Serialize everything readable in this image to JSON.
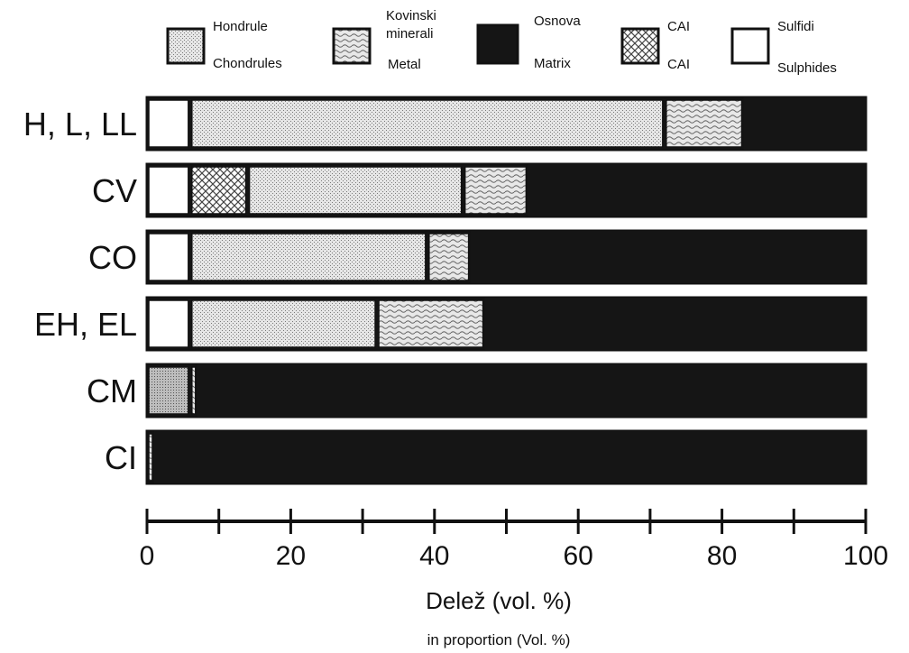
{
  "chart_data": {
    "type": "bar",
    "orientation": "horizontal",
    "stacked": true,
    "categories": [
      "H, L, LL",
      "CV",
      "CO",
      "EH, EL",
      "CM",
      "CI"
    ],
    "series": [
      {
        "key": "sulphides",
        "name_sl": "Sulfidi",
        "name_en": "Sulphides",
        "pattern": "white",
        "values": [
          6,
          6,
          6,
          6,
          0,
          0
        ]
      },
      {
        "key": "cai",
        "name_sl": "CAI",
        "name_en": "CAI",
        "pattern": "crosshatch",
        "values": [
          0,
          8,
          0,
          0,
          0,
          0
        ]
      },
      {
        "key": "chondrules",
        "name_sl": "Hondrule",
        "name_en": "Chondrules",
        "pattern": "fine-dots",
        "values": [
          66,
          30,
          33,
          26,
          6,
          0
        ]
      },
      {
        "key": "metal",
        "name_sl": "Kovinski minerali",
        "name_en": "Metal",
        "pattern": "wavy",
        "values": [
          11,
          9,
          6,
          15,
          1,
          1
        ]
      },
      {
        "key": "matrix",
        "name_sl": "Osnova",
        "name_en": "Matrix",
        "pattern": "black",
        "values": [
          17,
          47,
          55,
          53,
          93,
          99
        ]
      }
    ],
    "legend_labels": {
      "chondrules_sl": "Hondrule",
      "chondrules_en": "Chondrules",
      "metal_sl_1": "Kovinski",
      "metal_sl_2": "minerali",
      "metal_en": "Metal",
      "matrix_sl": "Osnova",
      "matrix_en": "Matrix",
      "cai_sl": "CAI",
      "cai_en": "CAI",
      "sulphides_sl": "Sulfidi",
      "sulphides_en": "Sulphides"
    },
    "xlim": [
      0,
      100
    ],
    "x_ticks": [
      0,
      20,
      40,
      60,
      80,
      100
    ],
    "xlabel": "Delež (vol. %)",
    "xlabel_secondary": "in proportion (Vol. %)",
    "legend_position": "top",
    "grid": false
  }
}
